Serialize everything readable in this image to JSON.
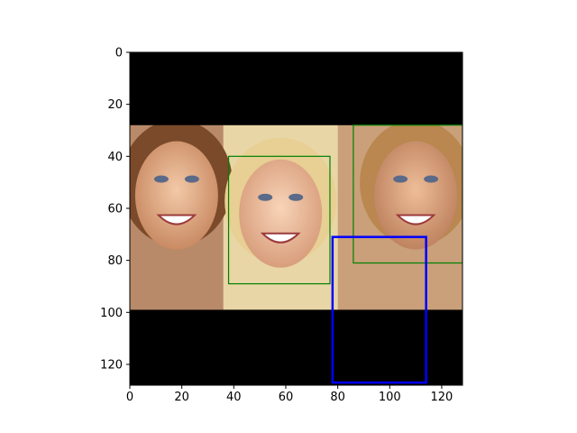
{
  "chart_data": {
    "type": "image-with-bounding-boxes",
    "image_extent": {
      "x": [
        0,
        128
      ],
      "y": [
        0,
        128
      ]
    },
    "y_inverted": true,
    "x_ticks": [
      0,
      20,
      40,
      60,
      80,
      100,
      120
    ],
    "y_ticks": [
      0,
      20,
      40,
      60,
      80,
      100,
      120
    ],
    "image_content": {
      "description_visible": "photo of three smiling faces",
      "photo_band_y": [
        28,
        99
      ],
      "letterbox_color": "#000000",
      "faces": [
        {
          "x_center": 18,
          "y_center": 55,
          "skin": "#e6b08c",
          "hair": "#7a4a2a"
        },
        {
          "x_center": 58,
          "y_center": 62,
          "skin": "#f0c2a2",
          "hair": "#e8cf93"
        },
        {
          "x_center": 110,
          "y_center": 55,
          "skin": "#e0a880",
          "hair": "#b9874f"
        }
      ]
    },
    "boxes": [
      {
        "name": "green-box-left",
        "color": "#008000",
        "x_min": 38,
        "y_min": 40,
        "x_max": 77,
        "y_max": 89,
        "linewidth": "thin"
      },
      {
        "name": "green-box-right",
        "color": "#008000",
        "x_min": 86,
        "y_min": 28,
        "x_max": 128,
        "y_max": 81,
        "linewidth": "thin"
      },
      {
        "name": "blue-box",
        "color": "#0000ff",
        "x_min": 78,
        "y_min": 71,
        "x_max": 114,
        "y_max": 127,
        "linewidth": "thick"
      }
    ],
    "title": "",
    "xlabel": "",
    "ylabel": "",
    "grid": false,
    "legend": "none"
  }
}
